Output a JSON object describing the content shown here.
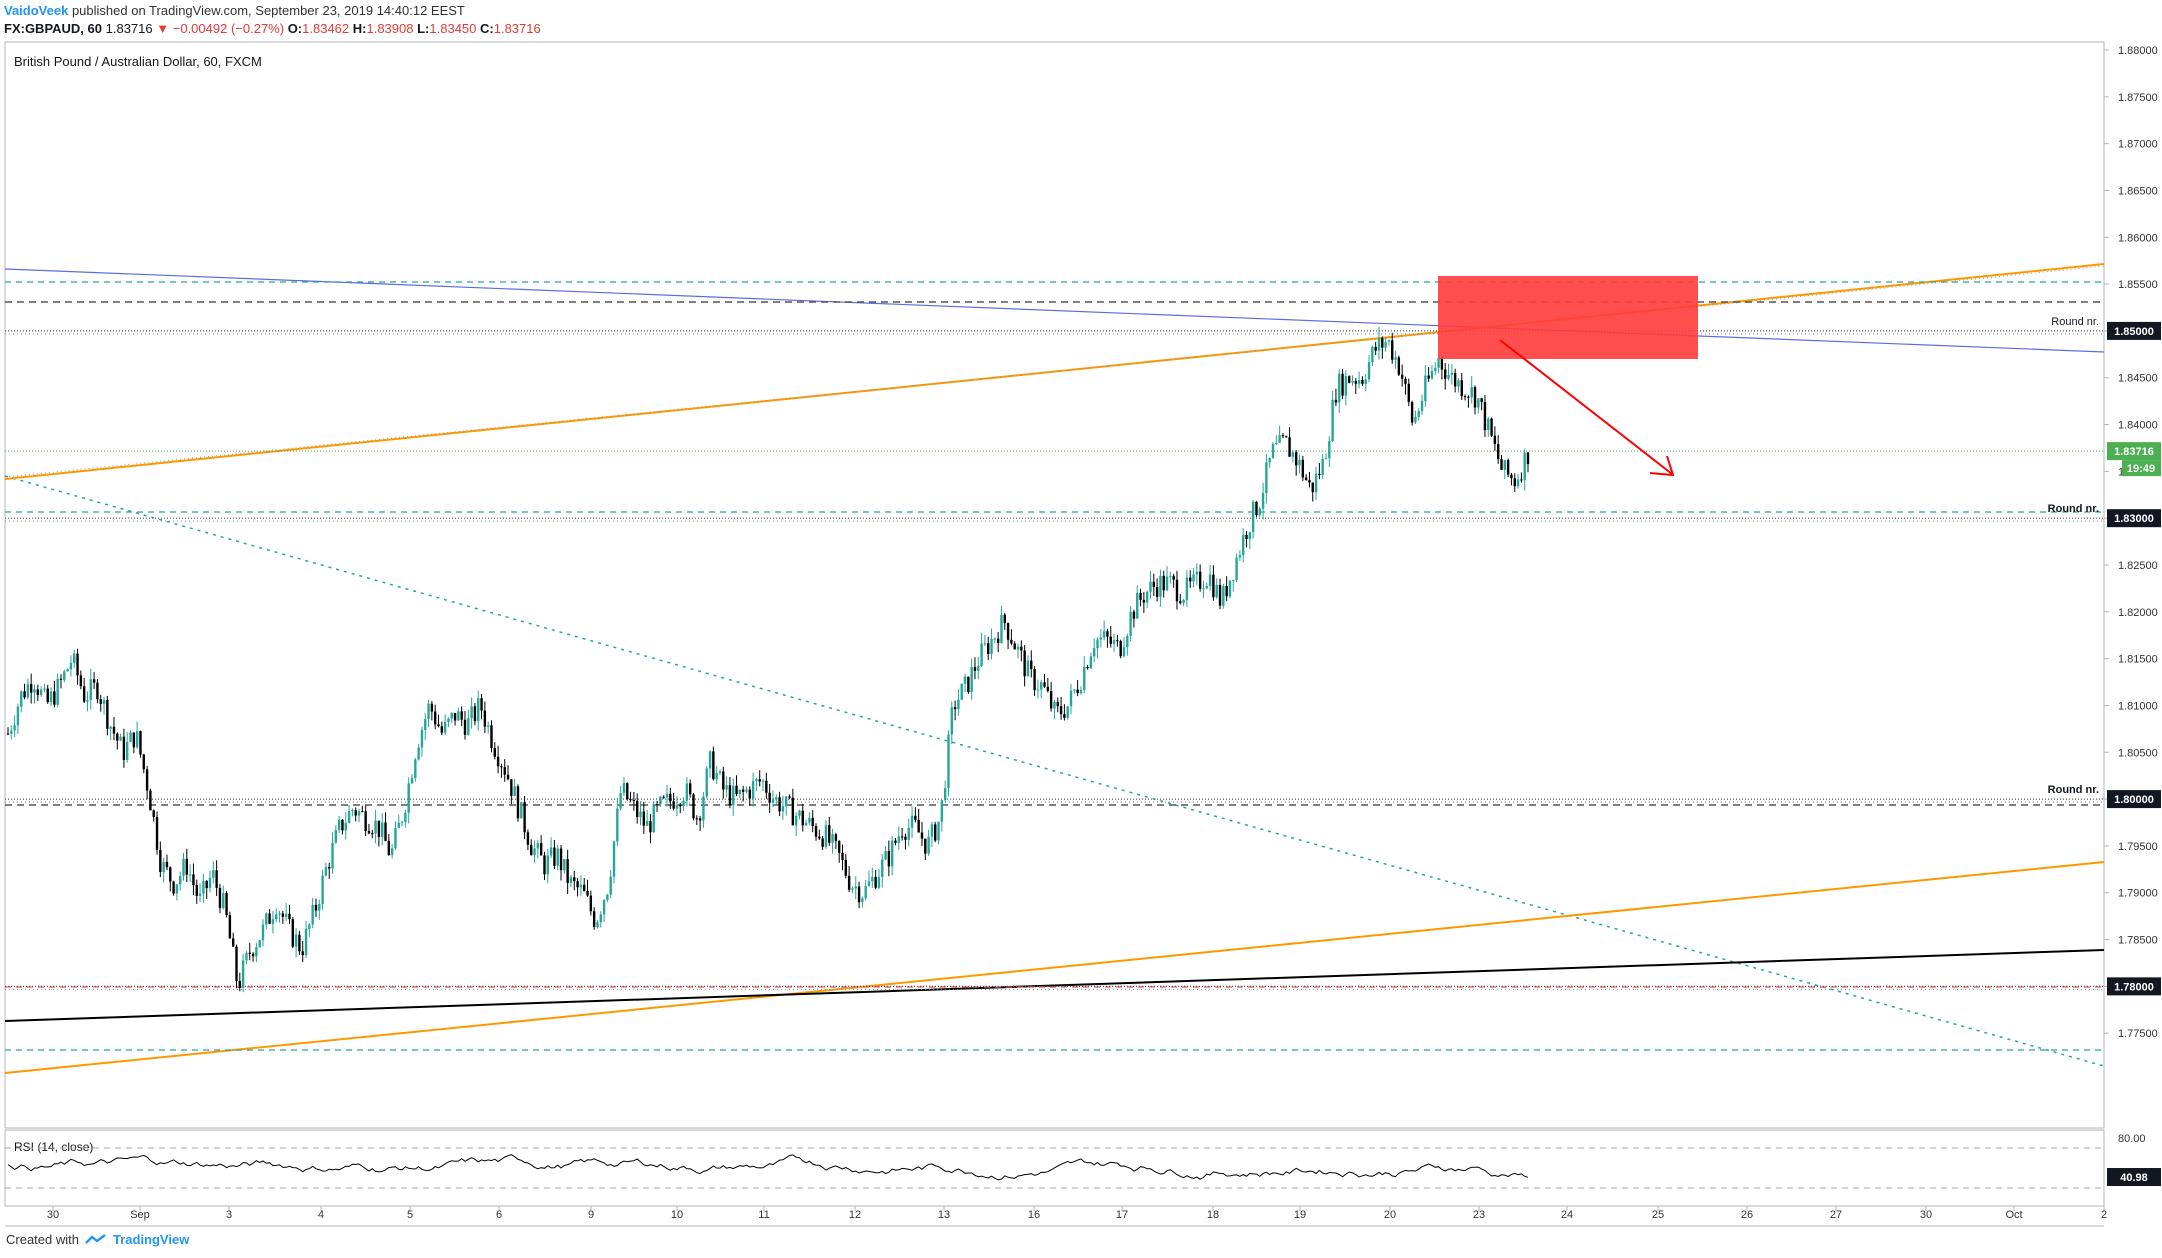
{
  "header": {
    "author": "VaidoVeek",
    "published": "published on TradingView.com, September 23, 2019 14:40:12 EEST",
    "symbol_interval": "FX:GBPAUD, 60",
    "last": "1.83716",
    "change": "−0.00492 (−0.27%)",
    "o_label": "O:",
    "o_value": "1.83462",
    "h_label": "H:",
    "h_value": "1.83908",
    "l_label": "L:",
    "l_value": "1.83450",
    "c_label": "C:",
    "c_value": "1.83716"
  },
  "footer": {
    "created_with": "Created with",
    "brand": "TradingView"
  },
  "chart_data": {
    "type": "candlestick",
    "title": "British Pound / Australian Dollar, 60, FXCM",
    "ylim": [
      1.77,
      1.88
    ],
    "y_ticks": [
      "1.88000",
      "1.87500",
      "1.87000",
      "1.86500",
      "1.86000",
      "1.85500",
      "1.85000",
      "1.84500",
      "1.84000",
      "1.83500",
      "1.83000",
      "1.82500",
      "1.82000",
      "1.81500",
      "1.81000",
      "1.80500",
      "1.80000",
      "1.79500",
      "1.79000",
      "1.78500",
      "1.78000",
      "1.77500"
    ],
    "x_ticks": [
      "30",
      "Sep",
      "3",
      "4",
      "5",
      "6",
      "9",
      "10",
      "11",
      "12",
      "13",
      "16",
      "17",
      "18",
      "19",
      "20",
      "23",
      "24",
      "25",
      "26",
      "27",
      "30",
      "Oct",
      "2"
    ],
    "last_price_label": "1.83716",
    "countdown_label": "19:49",
    "colors": {
      "up": "#26a69a",
      "down": "#ef5350",
      "bull_line": "#26a69a",
      "bear_line": "#000000",
      "last_price": "#4caf50",
      "zone": "#ff4444",
      "arrow": "#ff0000",
      "orange": "#ff9800",
      "blue": "#5b6ee1"
    },
    "levels": [
      {
        "value": 1.85,
        "label": "Round nr.",
        "tag": "1.85000"
      },
      {
        "value": 1.83,
        "label": "Round nr.",
        "tag": "1.83000"
      },
      {
        "value": 1.8,
        "label": "Round nr.",
        "tag": "1.80000"
      },
      {
        "value": 1.78,
        "label": "",
        "tag": "1.78000"
      }
    ],
    "price_path": [
      1.807,
      1.811,
      1.813,
      1.81,
      1.812,
      1.815,
      1.811,
      1.812,
      1.808,
      1.805,
      1.807,
      1.801,
      1.793,
      1.791,
      1.793,
      1.789,
      1.792,
      1.788,
      1.78,
      1.784,
      1.786,
      1.789,
      1.786,
      1.784,
      1.788,
      1.793,
      1.797,
      1.799,
      1.798,
      1.797,
      1.794,
      1.799,
      1.806,
      1.81,
      1.807,
      1.809,
      1.808,
      1.81,
      1.806,
      1.803,
      1.799,
      1.795,
      1.793,
      1.794,
      1.791,
      1.79,
      1.787,
      1.791,
      1.801,
      1.799,
      1.797,
      1.799,
      1.8,
      1.801,
      1.798,
      1.804,
      1.801,
      1.8,
      1.801,
      1.802,
      1.8,
      1.799,
      1.798,
      1.797,
      1.796,
      1.794,
      1.791,
      1.79,
      1.792,
      1.794,
      1.797,
      1.797,
      1.795,
      1.798,
      1.81,
      1.812,
      1.815,
      1.817,
      1.819,
      1.816,
      1.813,
      1.812,
      1.809,
      1.81,
      1.813,
      1.817,
      1.817,
      1.816,
      1.82,
      1.822,
      1.823,
      1.823,
      1.822,
      1.823,
      1.824,
      1.821,
      1.825,
      1.829,
      1.832,
      1.837,
      1.838,
      1.836,
      1.833,
      1.836,
      1.844,
      1.845,
      1.845,
      1.848,
      1.849,
      1.846,
      1.84,
      1.844,
      1.847,
      1.845,
      1.844,
      1.843,
      1.839,
      1.835,
      1.834,
      1.837
    ],
    "rsi": {
      "label": "RSI (14, close)",
      "ylim": [
        20,
        80
      ],
      "tick_labels": [
        "80.00"
      ],
      "last_tag": "40.98",
      "bands": [
        70,
        30
      ]
    }
  }
}
